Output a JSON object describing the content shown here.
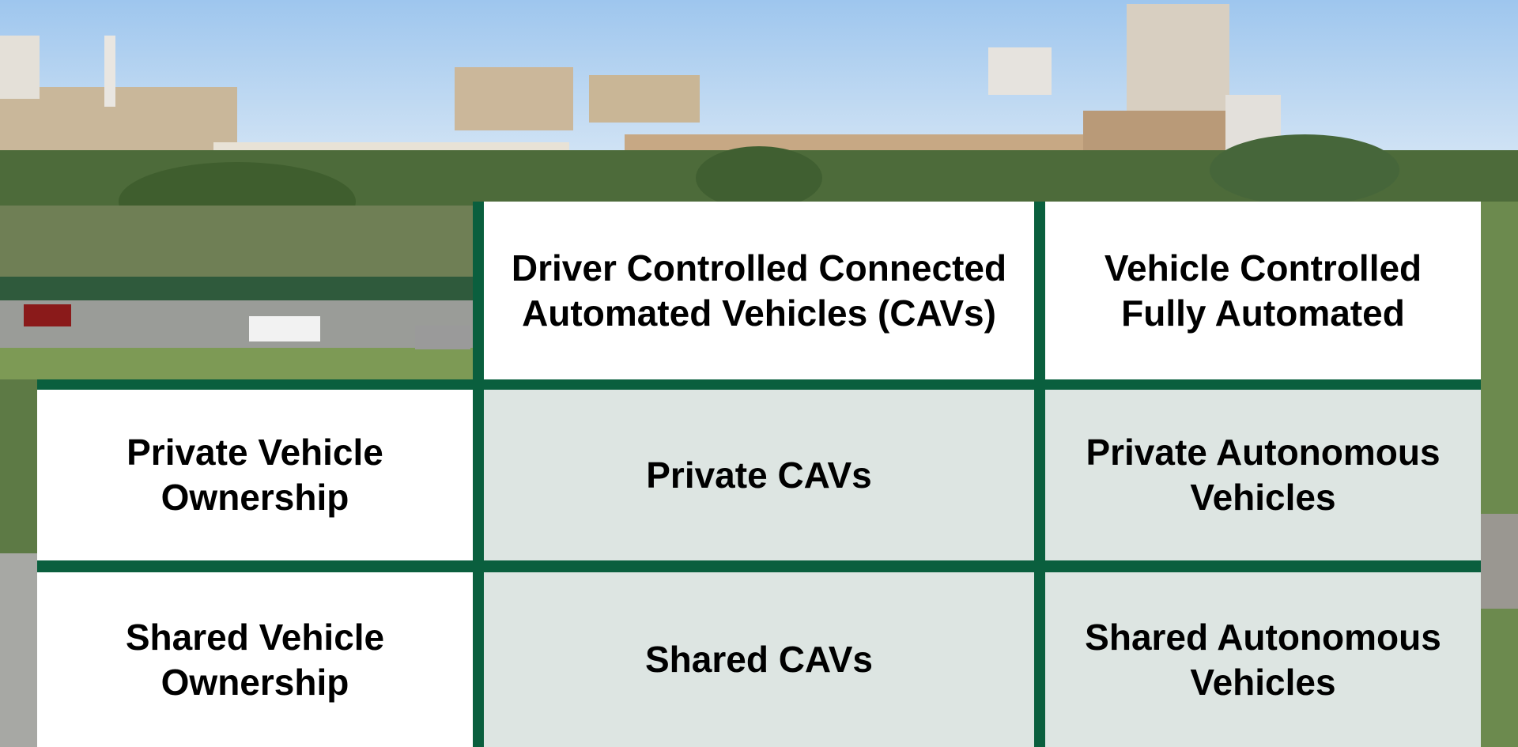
{
  "table": {
    "column_headers": [
      "Driver Controlled Connected Automated Vehicles (CAVs)",
      "Vehicle Controlled Fully Automated"
    ],
    "row_headers": [
      "Private Vehicle Ownership",
      "Shared Vehicle Ownership"
    ],
    "rows": [
      [
        "Private CAVs",
        "Private Autonomous Vehicles"
      ],
      [
        "Shared CAVs",
        "Shared Autonomous Vehicles"
      ]
    ]
  }
}
